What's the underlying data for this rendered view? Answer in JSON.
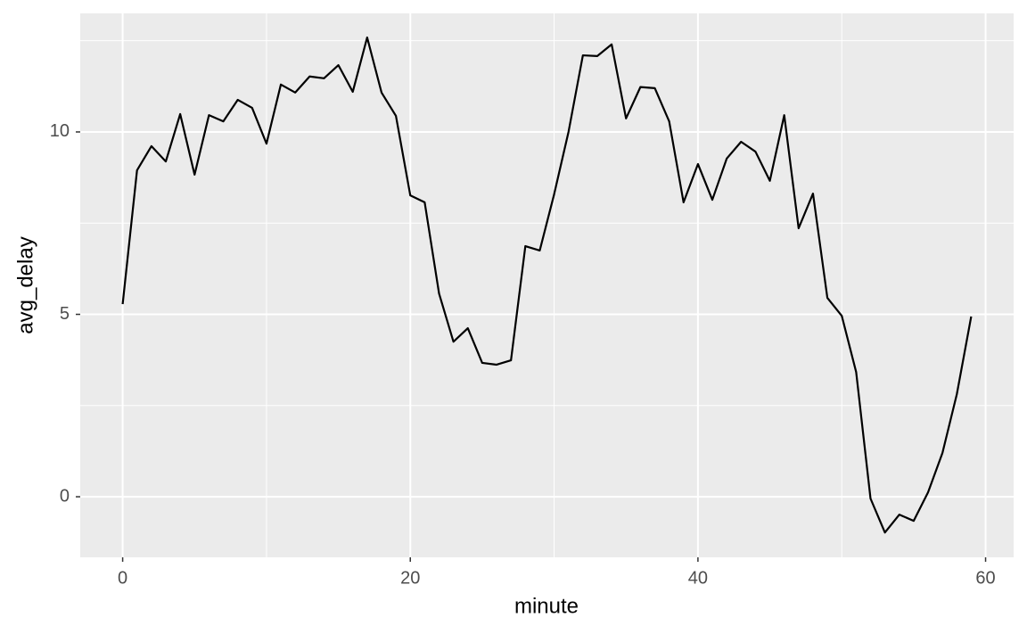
{
  "chart_data": {
    "type": "line",
    "x_label": "minute",
    "y_label": "avg_delay",
    "x": [
      0,
      1,
      2,
      3,
      4,
      5,
      6,
      7,
      8,
      9,
      10,
      11,
      12,
      13,
      14,
      15,
      16,
      17,
      18,
      19,
      20,
      21,
      22,
      23,
      24,
      25,
      26,
      27,
      28,
      29,
      30,
      31,
      32,
      33,
      34,
      35,
      36,
      37,
      38,
      39,
      40,
      41,
      42,
      43,
      44,
      45,
      46,
      47,
      48,
      49,
      50,
      51,
      52,
      53,
      54,
      55,
      56,
      57,
      58,
      59
    ],
    "series": [
      {
        "name": "avg_delay",
        "color": "#000000",
        "values": [
          5.28,
          8.95,
          9.61,
          9.19,
          10.49,
          8.83,
          10.46,
          10.29,
          10.88,
          10.66,
          9.68,
          11.3,
          11.08,
          11.52,
          11.47,
          11.83,
          11.1,
          12.59,
          11.08,
          10.44,
          8.26,
          8.07,
          5.57,
          4.25,
          4.62,
          3.67,
          3.62,
          3.74,
          6.87,
          6.75,
          8.29,
          10.0,
          12.1,
          12.08,
          12.4,
          10.37,
          11.23,
          11.2,
          10.29,
          8.07,
          9.12,
          8.14,
          9.27,
          9.73,
          9.46,
          8.66,
          10.46,
          7.36,
          8.31,
          5.45,
          4.96,
          3.42,
          -0.05,
          -0.98,
          -0.49,
          -0.66,
          0.12,
          1.2,
          2.81,
          4.94
        ]
      }
    ],
    "xlim": [
      -2.95,
      61.95
    ],
    "xticks": [
      0,
      20,
      40,
      60
    ],
    "xminor": [
      10,
      30,
      50
    ],
    "ylim": [
      -1.66,
      13.25
    ],
    "yticks": [
      0,
      5,
      10
    ],
    "yminor": [
      2.5,
      7.5,
      12.5
    ],
    "grid": true
  }
}
